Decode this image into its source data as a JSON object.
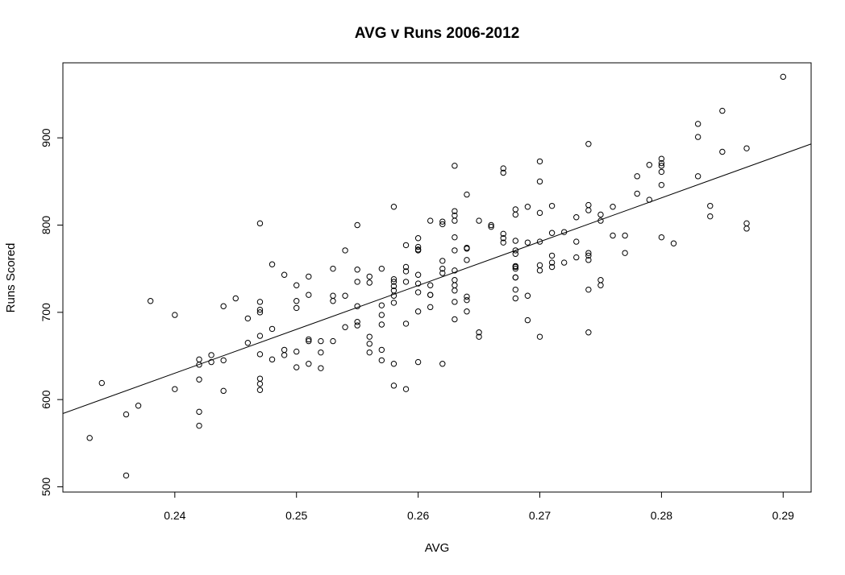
{
  "chart_data": {
    "type": "scatter",
    "title": "AVG v Runs 2006-2012",
    "xlabel": "AVG",
    "ylabel": "Runs Scored",
    "xlim": [
      0.2308,
      0.2923
    ],
    "ylim": [
      494,
      986
    ],
    "xticks": [
      0.24,
      0.25,
      0.26,
      0.27,
      0.28,
      0.29
    ],
    "xtick_labels": [
      "0.24",
      "0.25",
      "0.26",
      "0.27",
      "0.28",
      "0.29"
    ],
    "yticks": [
      500,
      600,
      700,
      800,
      900
    ],
    "ytick_labels": [
      "500",
      "600",
      "700",
      "800",
      "900"
    ],
    "grid": false,
    "legend": "none",
    "colors": {
      "points": "#000000",
      "line": "#000000",
      "background": "#ffffff"
    },
    "trendline": {
      "x": [
        0.2308,
        0.2923
      ],
      "y": [
        584,
        893
      ]
    },
    "x": [
      0.233,
      0.234,
      0.236,
      0.236,
      0.237,
      0.238,
      0.24,
      0.24,
      0.242,
      0.242,
      0.242,
      0.242,
      0.242,
      0.243,
      0.243,
      0.244,
      0.244,
      0.244,
      0.245,
      0.246,
      0.246,
      0.247,
      0.247,
      0.247,
      0.247,
      0.247,
      0.247,
      0.247,
      0.247,
      0.247,
      0.248,
      0.248,
      0.248,
      0.249,
      0.249,
      0.249,
      0.25,
      0.25,
      0.25,
      0.25,
      0.25,
      0.251,
      0.251,
      0.251,
      0.251,
      0.251,
      0.252,
      0.252,
      0.252,
      0.253,
      0.253,
      0.253,
      0.253,
      0.254,
      0.254,
      0.254,
      0.255,
      0.255,
      0.255,
      0.255,
      0.255,
      0.255,
      0.256,
      0.256,
      0.256,
      0.256,
      0.256,
      0.257,
      0.257,
      0.257,
      0.257,
      0.257,
      0.257,
      0.258,
      0.258,
      0.258,
      0.258,
      0.258,
      0.258,
      0.258,
      0.258,
      0.258,
      0.259,
      0.259,
      0.259,
      0.259,
      0.259,
      0.259,
      0.26,
      0.26,
      0.26,
      0.26,
      0.26,
      0.26,
      0.26,
      0.26,
      0.26,
      0.261,
      0.261,
      0.261,
      0.261,
      0.261,
      0.262,
      0.262,
      0.262,
      0.262,
      0.262,
      0.262,
      0.263,
      0.263,
      0.263,
      0.263,
      0.263,
      0.263,
      0.263,
      0.263,
      0.263,
      0.263,
      0.263,
      0.263,
      0.264,
      0.264,
      0.264,
      0.264,
      0.264,
      0.264,
      0.264,
      0.265,
      0.265,
      0.265,
      0.266,
      0.266,
      0.267,
      0.267,
      0.267,
      0.267,
      0.267,
      0.268,
      0.268,
      0.268,
      0.268,
      0.268,
      0.268,
      0.268,
      0.268,
      0.268,
      0.268,
      0.268,
      0.268,
      0.269,
      0.269,
      0.269,
      0.269,
      0.27,
      0.27,
      0.27,
      0.27,
      0.27,
      0.27,
      0.27,
      0.271,
      0.271,
      0.271,
      0.271,
      0.271,
      0.272,
      0.272,
      0.273,
      0.273,
      0.273,
      0.274,
      0.274,
      0.274,
      0.274,
      0.274,
      0.274,
      0.274,
      0.274,
      0.275,
      0.275,
      0.275,
      0.275,
      0.276,
      0.276,
      0.277,
      0.277,
      0.278,
      0.278,
      0.279,
      0.279,
      0.28,
      0.28,
      0.28,
      0.28,
      0.28,
      0.28,
      0.281,
      0.283,
      0.283,
      0.283,
      0.284,
      0.284,
      0.285,
      0.285,
      0.287,
      0.287,
      0.287,
      0.29
    ],
    "y": [
      556,
      619,
      583,
      513,
      593,
      713,
      697,
      612,
      646,
      640,
      623,
      586,
      570,
      651,
      643,
      707,
      645,
      610,
      716,
      693,
      665,
      802,
      712,
      703,
      700,
      673,
      652,
      624,
      618,
      611,
      755,
      681,
      646,
      743,
      657,
      651,
      731,
      713,
      705,
      655,
      637,
      741,
      720,
      669,
      667,
      641,
      667,
      654,
      636,
      750,
      719,
      713,
      667,
      771,
      719,
      683,
      800,
      749,
      735,
      707,
      689,
      685,
      741,
      734,
      672,
      664,
      654,
      750,
      708,
      697,
      686,
      657,
      645,
      821,
      738,
      735,
      730,
      725,
      719,
      711,
      641,
      616,
      777,
      752,
      747,
      735,
      687,
      612,
      785,
      775,
      771,
      743,
      733,
      723,
      701,
      643,
      772,
      805,
      731,
      720,
      706,
      720,
      804,
      801,
      759,
      750,
      745,
      641,
      868,
      816,
      811,
      805,
      786,
      771,
      748,
      737,
      731,
      725,
      712,
      692,
      835,
      774,
      760,
      718,
      714,
      701,
      773,
      805,
      677,
      672,
      800,
      798,
      865,
      860,
      790,
      785,
      780,
      818,
      812,
      782,
      771,
      767,
      753,
      750,
      740,
      726,
      716,
      752,
      740,
      821,
      780,
      719,
      691,
      873,
      850,
      814,
      781,
      754,
      672,
      748,
      822,
      791,
      765,
      757,
      752,
      792,
      757,
      809,
      781,
      763,
      893,
      823,
      817,
      768,
      765,
      760,
      726,
      677,
      812,
      805,
      737,
      731,
      821,
      788,
      788,
      768,
      856,
      836,
      869,
      829,
      876,
      871,
      868,
      861,
      846,
      786,
      779,
      916,
      901,
      856,
      822,
      810,
      931,
      884,
      888,
      802,
      796,
      970
    ]
  }
}
